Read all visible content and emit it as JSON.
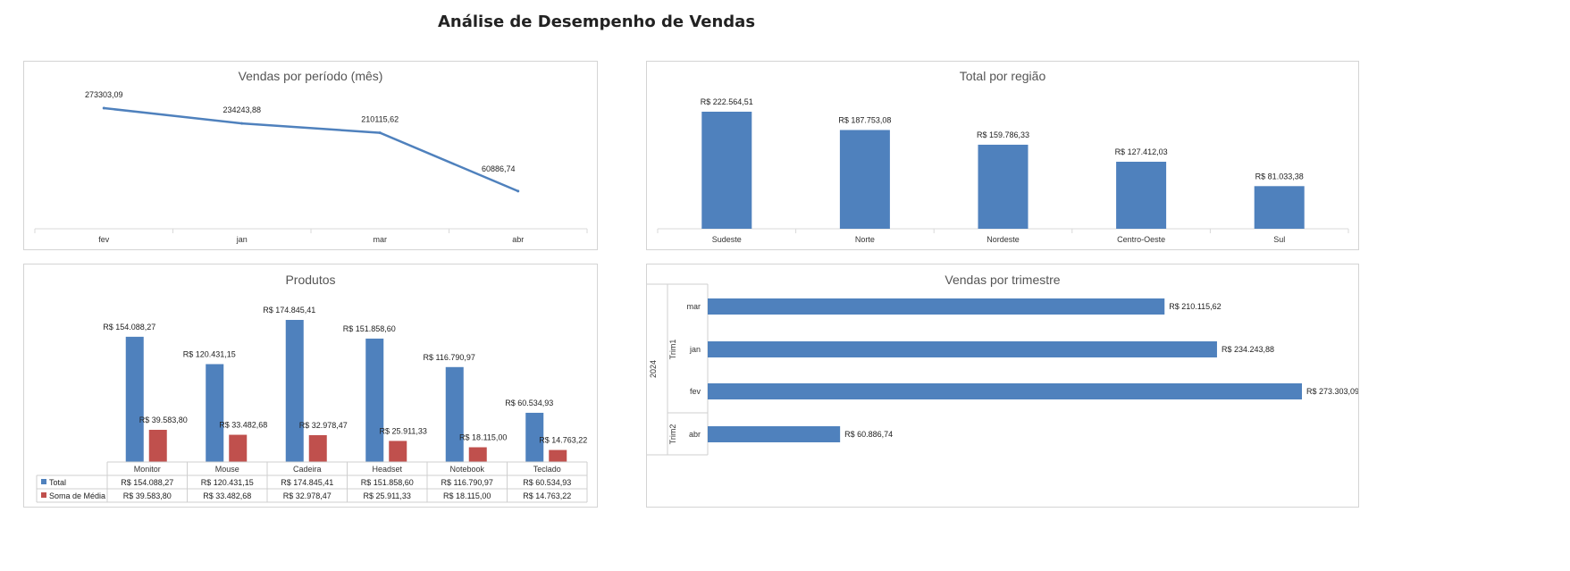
{
  "page": {
    "title": "Análise de Desempenho de Vendas"
  },
  "colors": {
    "primary": "#4f81bd",
    "secondary": "#c0504d",
    "gridline": "#d9d9d9"
  },
  "chart_data": [
    {
      "type": "line",
      "title": "Vendas por período (mês)",
      "categories": [
        "fev",
        "jan",
        "mar",
        "abr"
      ],
      "values": [
        273303.09,
        234243.88,
        210115.62,
        60886.74
      ],
      "data_labels": [
        "273303,09",
        "234243,88",
        "210115,62",
        "60886,74"
      ],
      "grid": false
    },
    {
      "type": "bar",
      "title": "Total por região",
      "categories": [
        "Sudeste",
        "Norte",
        "Nordeste",
        "Centro-Oeste",
        "Sul"
      ],
      "values": [
        222564.51,
        187753.08,
        159786.33,
        127412.03,
        81033.38
      ],
      "data_labels": [
        "R$ 222.564,51",
        "R$ 187.753,08",
        "R$ 159.786,33",
        "R$ 127.412,03",
        "R$ 81.033,38"
      ],
      "grid": false
    },
    {
      "type": "bar",
      "title": "Produtos",
      "categories": [
        "Monitor",
        "Mouse",
        "Cadeira",
        "Headset",
        "Notebook",
        "Teclado"
      ],
      "series": [
        {
          "name": "Total",
          "values": [
            154088.27,
            120431.15,
            174845.41,
            151858.6,
            116790.97,
            60534.93
          ],
          "labels": [
            "R$ 154.088,27",
            "R$ 120.431,15",
            "R$ 174.845,41",
            "R$ 151.858,60",
            "R$ 116.790,97",
            "R$ 60.534,93"
          ]
        },
        {
          "name": "Soma de Média",
          "values": [
            39583.8,
            33482.68,
            32978.47,
            25911.33,
            18115.0,
            14763.22
          ],
          "labels": [
            "R$ 39.583,80",
            "R$ 33.482,68",
            "R$ 32.978,47",
            "R$ 25.911,33",
            "R$ 18.115,00",
            "R$ 14.763,22"
          ]
        }
      ],
      "legend": "data-table"
    },
    {
      "type": "bar",
      "orientation": "horizontal",
      "title": "Vendas por trimestre",
      "categories": [
        "mar",
        "jan",
        "fev",
        "abr"
      ],
      "groups": [
        {
          "name": "Trim1",
          "categories": [
            "mar",
            "jan",
            "fev"
          ]
        },
        {
          "name": "Trim2",
          "categories": [
            "abr"
          ]
        }
      ],
      "outer_group": "2024",
      "values": [
        210115.62,
        234243.88,
        273303.09,
        60886.74
      ],
      "data_labels": [
        "R$ 210.115,62",
        "R$ 234.243,88",
        "R$ 273.303,09",
        "R$ 60.886,74"
      ],
      "grid": false
    }
  ]
}
